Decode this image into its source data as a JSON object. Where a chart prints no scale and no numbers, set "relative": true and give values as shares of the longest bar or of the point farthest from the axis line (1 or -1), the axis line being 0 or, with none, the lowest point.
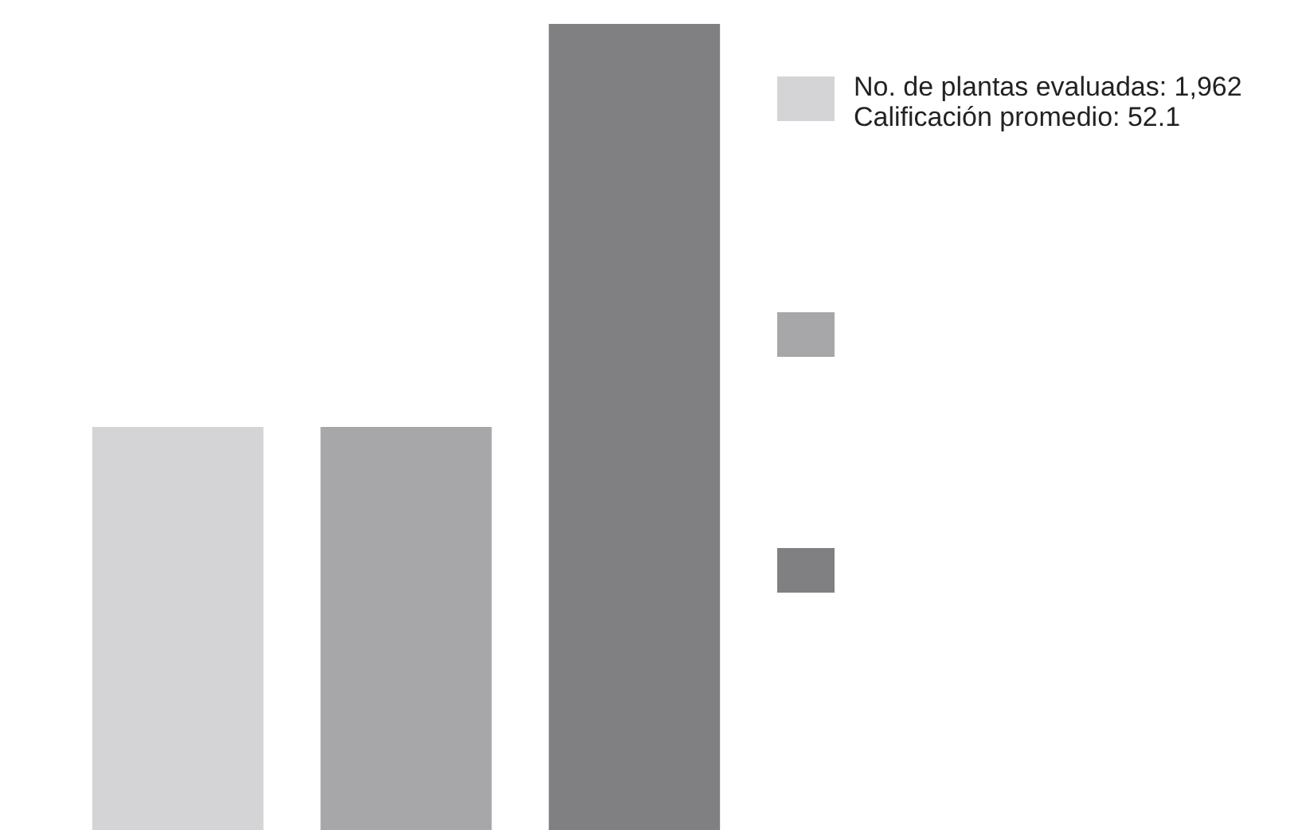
{
  "chart_data": {
    "type": "bar",
    "relative": true,
    "categories": [
      null,
      null,
      null
    ],
    "values": [
      0.5,
      0.5,
      1
    ],
    "colors": [
      "#d4d4d6",
      "#a7a7a9",
      "#808083"
    ],
    "annotations": [
      "No. de plantas evaluadas: 1,962\nCalificación promedio: 52.1"
    ]
  }
}
